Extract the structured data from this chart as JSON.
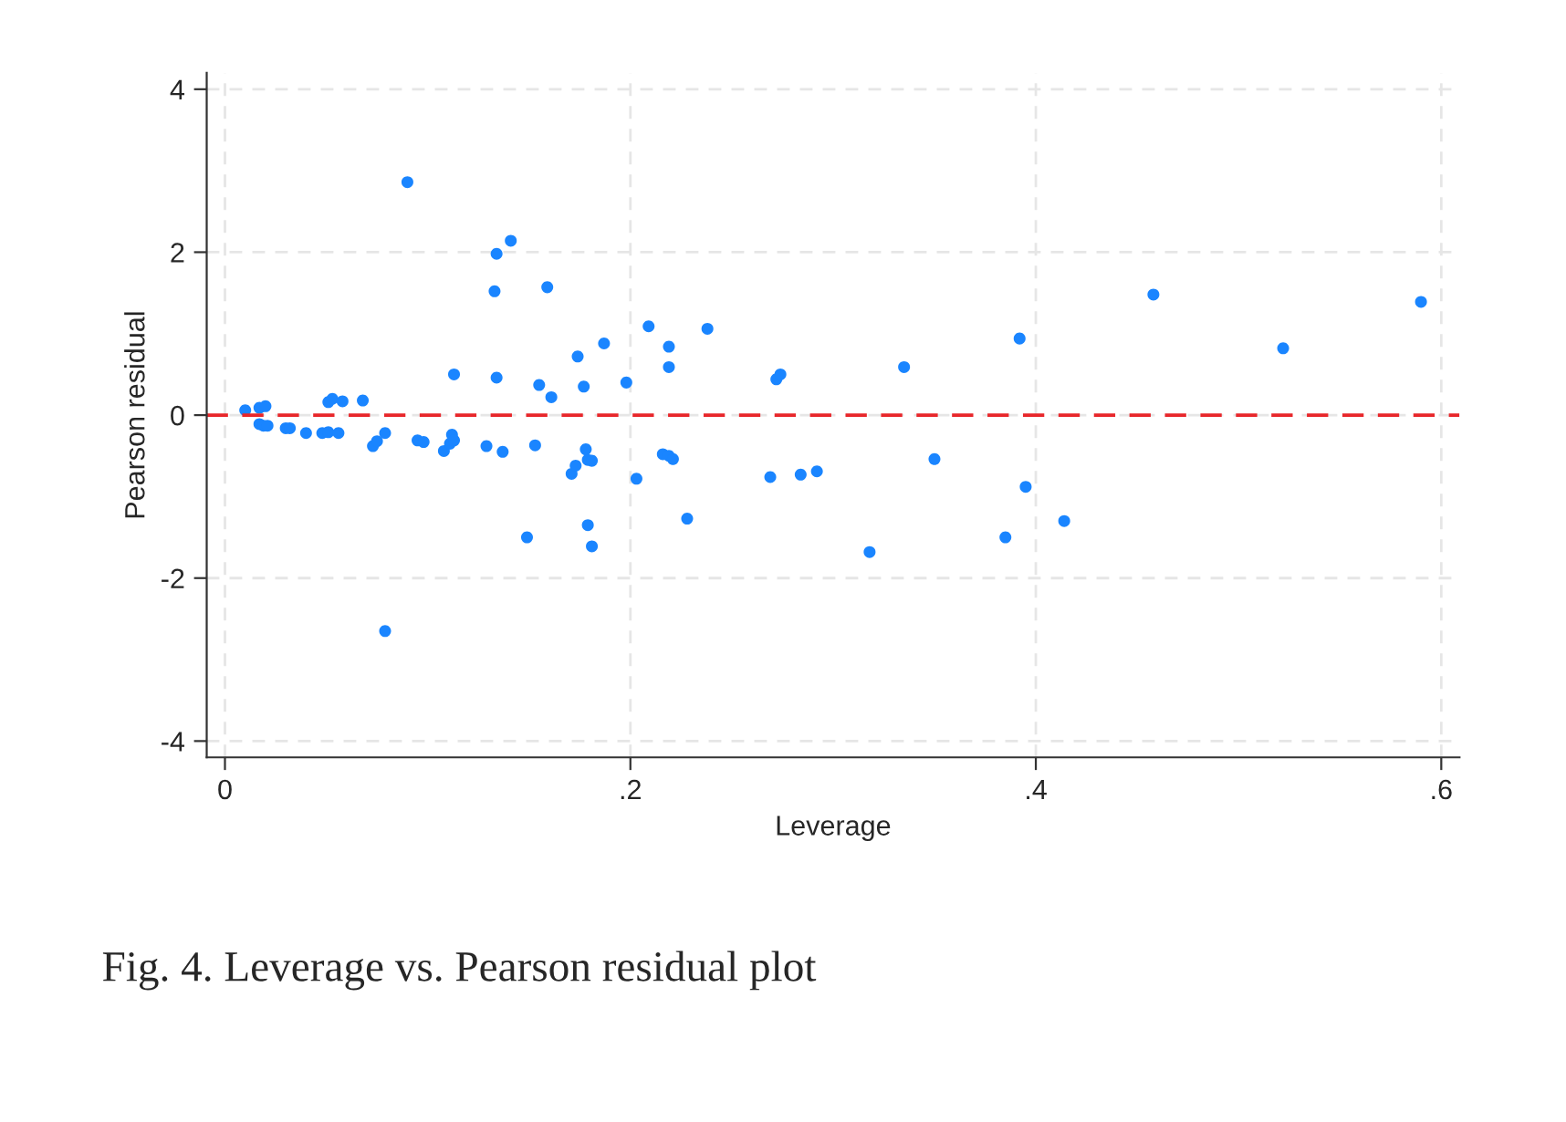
{
  "chart_data": {
    "type": "scatter",
    "xlabel": "Leverage",
    "ylabel": "Pearson residual",
    "annotations": [
      "Fig. 4. Leverage vs. Pearson residual plot"
    ],
    "xlim": [
      -0.009,
      0.609
    ],
    "ylim": [
      -4.2,
      4.2
    ],
    "xticks": [
      0,
      {
        "value": 0.2,
        "label": ".2"
      },
      {
        "value": 0.4,
        "label": ".4"
      },
      {
        "value": 0.6,
        "label": ".6"
      }
    ],
    "yticks": [
      -4,
      -2,
      0,
      2,
      4
    ],
    "grid": true,
    "marker": "circle",
    "ref_lines": [
      {
        "axis": "y",
        "value": 0,
        "label": null,
        "color": "#e8262a",
        "line_style": "dashed"
      }
    ],
    "series": [
      {
        "color": "#1a85ff",
        "x": [
          0.01,
          0.017,
          0.02,
          0.017,
          0.019,
          0.021,
          0.03,
          0.032,
          0.04,
          0.048,
          0.051,
          0.056,
          0.051,
          0.053,
          0.058,
          0.068,
          0.073,
          0.075,
          0.079,
          0.09,
          0.079,
          0.095,
          0.098,
          0.108,
          0.111,
          0.112,
          0.113,
          0.113,
          0.129,
          0.133,
          0.134,
          0.134,
          0.137,
          0.141,
          0.149,
          0.153,
          0.155,
          0.159,
          0.161,
          0.171,
          0.173,
          0.174,
          0.177,
          0.178,
          0.179,
          0.179,
          0.181,
          0.181,
          0.187,
          0.198,
          0.203,
          0.209,
          0.216,
          0.219,
          0.219,
          0.219,
          0.221,
          0.228,
          0.238,
          0.269,
          0.272,
          0.274,
          0.284,
          0.292,
          0.318,
          0.335,
          0.35,
          0.385,
          0.392,
          0.395,
          0.414,
          0.458,
          0.522,
          0.59
        ],
        "values": [
          0.06,
          0.09,
          0.11,
          -0.11,
          -0.13,
          -0.13,
          -0.16,
          -0.16,
          -0.22,
          -0.22,
          -0.21,
          -0.22,
          0.16,
          0.2,
          0.17,
          0.18,
          -0.38,
          -0.32,
          -0.22,
          2.86,
          -2.65,
          -0.31,
          -0.33,
          -0.44,
          -0.35,
          -0.24,
          -0.31,
          0.5,
          -0.38,
          1.52,
          1.98,
          0.46,
          -0.45,
          2.14,
          -1.5,
          -0.37,
          0.37,
          1.57,
          0.22,
          -0.72,
          -0.62,
          0.72,
          0.35,
          -0.42,
          -1.35,
          -0.55,
          -0.56,
          -1.61,
          0.88,
          0.4,
          -0.78,
          1.09,
          -0.48,
          0.59,
          0.84,
          -0.5,
          -0.54,
          -1.27,
          1.06,
          -0.76,
          0.44,
          0.5,
          -0.73,
          -0.69,
          -1.68,
          0.59,
          -0.54,
          -1.5,
          0.94,
          -0.88,
          -1.3,
          1.48,
          0.82,
          1.39
        ]
      }
    ]
  }
}
